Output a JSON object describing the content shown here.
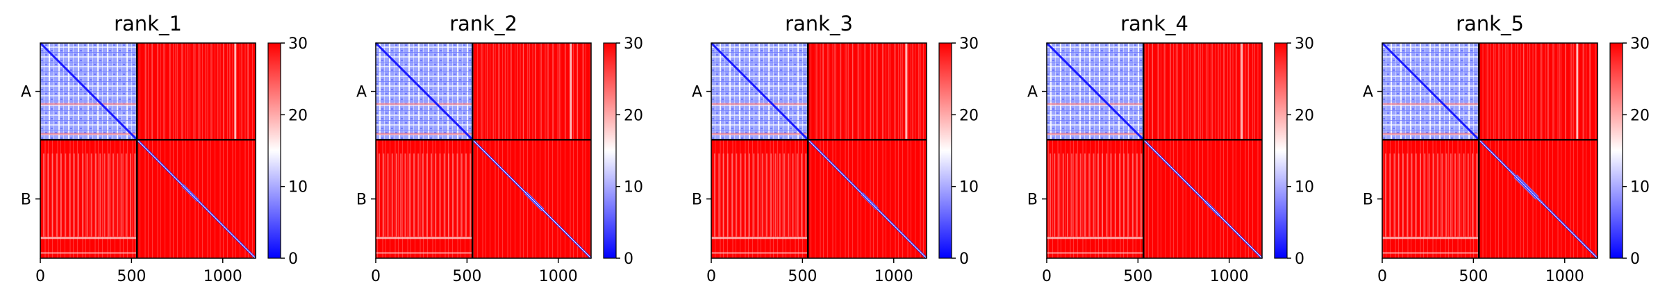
{
  "chart_data": [
    {
      "type": "heatmap",
      "title": "rank_1",
      "xticks": [
        0,
        500,
        1000
      ],
      "xlim": [
        0,
        1180
      ],
      "chain_boundary": 530,
      "chain_labels": [
        "A",
        "B"
      ],
      "colorbar": {
        "ticks": [
          0,
          10,
          20,
          30
        ],
        "range": [
          0,
          30
        ],
        "colormap": "bwr"
      },
      "diag_band_mid": 0.45,
      "diag_band_halfwidth": 0.1
    },
    {
      "type": "heatmap",
      "title": "rank_2",
      "xticks": [
        0,
        500,
        1000
      ],
      "xlim": [
        0,
        1180
      ],
      "chain_boundary": 530,
      "chain_labels": [
        "A",
        "B"
      ],
      "colorbar": {
        "ticks": [
          0,
          10,
          20,
          30
        ],
        "range": [
          0,
          30
        ],
        "colormap": "bwr"
      },
      "diag_band_mid": 0.52,
      "diag_band_halfwidth": 0.11
    },
    {
      "type": "heatmap",
      "title": "rank_3",
      "xticks": [
        0,
        500,
        1000
      ],
      "xlim": [
        0,
        1180
      ],
      "chain_boundary": 530,
      "chain_labels": [
        "A",
        "B"
      ],
      "colorbar": {
        "ticks": [
          0,
          10,
          20,
          30
        ],
        "range": [
          0,
          30
        ],
        "colormap": "bwr"
      },
      "diag_band_mid": 0.52,
      "diag_band_halfwidth": 0.1
    },
    {
      "type": "heatmap",
      "title": "rank_4",
      "xticks": [
        0,
        500,
        1000
      ],
      "xlim": [
        0,
        1180
      ],
      "chain_boundary": 530,
      "chain_labels": [
        "A",
        "B"
      ],
      "colorbar": {
        "ticks": [
          0,
          10,
          20,
          30
        ],
        "range": [
          0,
          30
        ],
        "colormap": "bwr"
      },
      "diag_band_mid": 0.58,
      "diag_band_halfwidth": 0.09
    },
    {
      "type": "heatmap",
      "title": "rank_5",
      "xticks": [
        0,
        500,
        1000
      ],
      "xlim": [
        0,
        1180
      ],
      "chain_boundary": 530,
      "chain_labels": [
        "A",
        "B"
      ],
      "colorbar": {
        "ticks": [
          0,
          10,
          20,
          30
        ],
        "range": [
          0,
          30
        ],
        "colormap": "bwr"
      },
      "diag_band_mid": 0.4,
      "diag_band_halfwidth": 0.14
    }
  ]
}
